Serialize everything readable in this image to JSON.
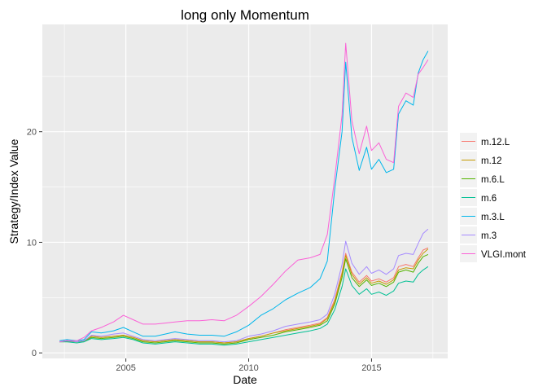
{
  "chart_data": {
    "type": "line",
    "title": "long only Momentum",
    "xlabel": "Date",
    "ylabel": "Strategy/Index Value",
    "xlim": [
      2001.6,
      2018.1
    ],
    "ylim": [
      -0.5,
      29.7
    ],
    "xticks": [
      2005,
      2010,
      2015
    ],
    "xtick_labels": [
      "2005",
      "2010",
      "2015"
    ],
    "yticks": [
      0,
      10,
      20
    ],
    "ytick_labels": [
      "0",
      "10",
      "20"
    ],
    "grid": true,
    "legend_position": "right",
    "x_unit": "year",
    "series": [
      {
        "name": "m.12.L",
        "color": "#F8766D",
        "points": [
          [
            2002.3,
            1.0
          ],
          [
            2002.6,
            1.1
          ],
          [
            2003.0,
            1.0
          ],
          [
            2003.3,
            1.1
          ],
          [
            2003.6,
            1.5
          ],
          [
            2004.0,
            1.4
          ],
          [
            2004.5,
            1.5
          ],
          [
            2004.9,
            1.6
          ],
          [
            2005.3,
            1.4
          ],
          [
            2005.7,
            1.1
          ],
          [
            2006.2,
            1.0
          ],
          [
            2006.6,
            1.1
          ],
          [
            2007.0,
            1.2
          ],
          [
            2007.5,
            1.1
          ],
          [
            2008.0,
            1.0
          ],
          [
            2008.5,
            1.0
          ],
          [
            2009.0,
            0.9
          ],
          [
            2009.5,
            1.0
          ],
          [
            2010.0,
            1.3
          ],
          [
            2010.5,
            1.5
          ],
          [
            2011.0,
            1.8
          ],
          [
            2011.5,
            2.1
          ],
          [
            2012.0,
            2.3
          ],
          [
            2012.5,
            2.5
          ],
          [
            2012.9,
            2.7
          ],
          [
            2013.2,
            3.2
          ],
          [
            2013.5,
            4.8
          ],
          [
            2013.8,
            7.3
          ],
          [
            2013.95,
            9.0
          ],
          [
            2014.2,
            7.3
          ],
          [
            2014.5,
            6.4
          ],
          [
            2014.8,
            7.0
          ],
          [
            2015.0,
            6.5
          ],
          [
            2015.3,
            6.7
          ],
          [
            2015.6,
            6.4
          ],
          [
            2015.9,
            6.8
          ],
          [
            2016.1,
            7.8
          ],
          [
            2016.4,
            8.0
          ],
          [
            2016.7,
            7.8
          ],
          [
            2016.9,
            8.6
          ],
          [
            2017.1,
            9.3
          ],
          [
            2017.3,
            9.5
          ]
        ]
      },
      {
        "name": "m.12",
        "color": "#C49A00",
        "points": [
          [
            2002.3,
            1.0
          ],
          [
            2002.6,
            1.1
          ],
          [
            2003.0,
            1.0
          ],
          [
            2003.3,
            1.1
          ],
          [
            2003.6,
            1.5
          ],
          [
            2004.0,
            1.4
          ],
          [
            2004.5,
            1.5
          ],
          [
            2004.9,
            1.6
          ],
          [
            2005.3,
            1.4
          ],
          [
            2005.7,
            1.1
          ],
          [
            2006.2,
            1.0
          ],
          [
            2006.6,
            1.1
          ],
          [
            2007.0,
            1.2
          ],
          [
            2007.5,
            1.1
          ],
          [
            2008.0,
            1.0
          ],
          [
            2008.5,
            1.0
          ],
          [
            2009.0,
            0.9
          ],
          [
            2009.5,
            1.0
          ],
          [
            2010.0,
            1.3
          ],
          [
            2010.5,
            1.5
          ],
          [
            2011.0,
            1.8
          ],
          [
            2011.5,
            2.0
          ],
          [
            2012.0,
            2.2
          ],
          [
            2012.5,
            2.4
          ],
          [
            2012.9,
            2.6
          ],
          [
            2013.2,
            3.1
          ],
          [
            2013.5,
            4.6
          ],
          [
            2013.8,
            7.1
          ],
          [
            2013.95,
            8.8
          ],
          [
            2014.2,
            7.1
          ],
          [
            2014.5,
            6.2
          ],
          [
            2014.8,
            6.8
          ],
          [
            2015.0,
            6.3
          ],
          [
            2015.3,
            6.5
          ],
          [
            2015.6,
            6.2
          ],
          [
            2015.9,
            6.6
          ],
          [
            2016.1,
            7.5
          ],
          [
            2016.4,
            7.7
          ],
          [
            2016.7,
            7.6
          ],
          [
            2016.9,
            8.4
          ],
          [
            2017.1,
            9.0
          ],
          [
            2017.3,
            9.4
          ]
        ]
      },
      {
        "name": "m.6.L",
        "color": "#53B400",
        "points": [
          [
            2002.3,
            1.0
          ],
          [
            2002.6,
            1.0
          ],
          [
            2003.0,
            1.0
          ],
          [
            2003.3,
            1.0
          ],
          [
            2003.6,
            1.4
          ],
          [
            2004.0,
            1.3
          ],
          [
            2004.5,
            1.4
          ],
          [
            2004.9,
            1.5
          ],
          [
            2005.3,
            1.3
          ],
          [
            2005.7,
            1.0
          ],
          [
            2006.2,
            0.9
          ],
          [
            2006.6,
            1.0
          ],
          [
            2007.0,
            1.1
          ],
          [
            2007.5,
            1.0
          ],
          [
            2008.0,
            0.9
          ],
          [
            2008.5,
            0.9
          ],
          [
            2009.0,
            0.8
          ],
          [
            2009.5,
            0.9
          ],
          [
            2010.0,
            1.2
          ],
          [
            2010.5,
            1.4
          ],
          [
            2011.0,
            1.6
          ],
          [
            2011.5,
            1.9
          ],
          [
            2012.0,
            2.1
          ],
          [
            2012.5,
            2.3
          ],
          [
            2012.9,
            2.5
          ],
          [
            2013.2,
            2.9
          ],
          [
            2013.5,
            4.4
          ],
          [
            2013.8,
            6.8
          ],
          [
            2013.95,
            8.5
          ],
          [
            2014.2,
            6.8
          ],
          [
            2014.5,
            6.0
          ],
          [
            2014.8,
            6.6
          ],
          [
            2015.0,
            6.1
          ],
          [
            2015.3,
            6.3
          ],
          [
            2015.6,
            6.0
          ],
          [
            2015.9,
            6.4
          ],
          [
            2016.1,
            7.3
          ],
          [
            2016.4,
            7.5
          ],
          [
            2016.7,
            7.3
          ],
          [
            2016.9,
            8.1
          ],
          [
            2017.1,
            8.7
          ],
          [
            2017.3,
            8.9
          ]
        ]
      },
      {
        "name": "m.6",
        "color": "#00C094",
        "points": [
          [
            2002.3,
            1.0
          ],
          [
            2002.6,
            1.0
          ],
          [
            2003.0,
            0.9
          ],
          [
            2003.3,
            1.0
          ],
          [
            2003.6,
            1.3
          ],
          [
            2004.0,
            1.2
          ],
          [
            2004.5,
            1.3
          ],
          [
            2004.9,
            1.4
          ],
          [
            2005.3,
            1.2
          ],
          [
            2005.7,
            0.9
          ],
          [
            2006.2,
            0.8
          ],
          [
            2006.6,
            0.9
          ],
          [
            2007.0,
            1.0
          ],
          [
            2007.5,
            0.9
          ],
          [
            2008.0,
            0.8
          ],
          [
            2008.5,
            0.8
          ],
          [
            2009.0,
            0.7
          ],
          [
            2009.5,
            0.8
          ],
          [
            2010.0,
            1.0
          ],
          [
            2010.5,
            1.2
          ],
          [
            2011.0,
            1.4
          ],
          [
            2011.5,
            1.6
          ],
          [
            2012.0,
            1.8
          ],
          [
            2012.5,
            2.0
          ],
          [
            2012.9,
            2.2
          ],
          [
            2013.2,
            2.6
          ],
          [
            2013.5,
            3.9
          ],
          [
            2013.8,
            6.0
          ],
          [
            2013.95,
            7.6
          ],
          [
            2014.2,
            6.1
          ],
          [
            2014.5,
            5.3
          ],
          [
            2014.8,
            5.8
          ],
          [
            2015.0,
            5.3
          ],
          [
            2015.3,
            5.5
          ],
          [
            2015.6,
            5.2
          ],
          [
            2015.9,
            5.6
          ],
          [
            2016.1,
            6.3
          ],
          [
            2016.4,
            6.5
          ],
          [
            2016.7,
            6.4
          ],
          [
            2016.9,
            7.1
          ],
          [
            2017.1,
            7.5
          ],
          [
            2017.3,
            7.8
          ]
        ]
      },
      {
        "name": "m.3.L",
        "color": "#00B6EB",
        "points": [
          [
            2002.3,
            1.1
          ],
          [
            2002.6,
            1.2
          ],
          [
            2003.0,
            1.1
          ],
          [
            2003.3,
            1.2
          ],
          [
            2003.6,
            1.9
          ],
          [
            2004.0,
            1.8
          ],
          [
            2004.5,
            2.0
          ],
          [
            2004.9,
            2.3
          ],
          [
            2005.3,
            1.9
          ],
          [
            2005.7,
            1.5
          ],
          [
            2006.2,
            1.5
          ],
          [
            2006.6,
            1.7
          ],
          [
            2007.0,
            1.9
          ],
          [
            2007.5,
            1.7
          ],
          [
            2008.0,
            1.6
          ],
          [
            2008.5,
            1.6
          ],
          [
            2009.0,
            1.5
          ],
          [
            2009.5,
            1.9
          ],
          [
            2010.0,
            2.5
          ],
          [
            2010.5,
            3.4
          ],
          [
            2011.0,
            4.0
          ],
          [
            2011.5,
            4.8
          ],
          [
            2012.0,
            5.4
          ],
          [
            2012.5,
            5.9
          ],
          [
            2012.9,
            6.7
          ],
          [
            2013.2,
            8.3
          ],
          [
            2013.5,
            14.8
          ],
          [
            2013.8,
            20.0
          ],
          [
            2013.95,
            26.3
          ],
          [
            2014.2,
            19.5
          ],
          [
            2014.5,
            16.5
          ],
          [
            2014.8,
            18.6
          ],
          [
            2015.0,
            16.6
          ],
          [
            2015.3,
            17.5
          ],
          [
            2015.6,
            16.3
          ],
          [
            2015.9,
            16.6
          ],
          [
            2016.1,
            21.6
          ],
          [
            2016.4,
            22.8
          ],
          [
            2016.7,
            22.4
          ],
          [
            2016.9,
            25.3
          ],
          [
            2017.1,
            26.5
          ],
          [
            2017.3,
            27.3
          ]
        ]
      },
      {
        "name": "m.3",
        "color": "#A58AFF",
        "points": [
          [
            2002.3,
            1.0
          ],
          [
            2002.6,
            1.1
          ],
          [
            2003.0,
            1.0
          ],
          [
            2003.3,
            1.1
          ],
          [
            2003.6,
            1.6
          ],
          [
            2004.0,
            1.5
          ],
          [
            2004.5,
            1.7
          ],
          [
            2004.9,
            1.8
          ],
          [
            2005.3,
            1.5
          ],
          [
            2005.7,
            1.2
          ],
          [
            2006.2,
            1.1
          ],
          [
            2006.6,
            1.2
          ],
          [
            2007.0,
            1.3
          ],
          [
            2007.5,
            1.2
          ],
          [
            2008.0,
            1.1
          ],
          [
            2008.5,
            1.1
          ],
          [
            2009.0,
            1.0
          ],
          [
            2009.5,
            1.1
          ],
          [
            2010.0,
            1.5
          ],
          [
            2010.5,
            1.7
          ],
          [
            2011.0,
            2.0
          ],
          [
            2011.5,
            2.4
          ],
          [
            2012.0,
            2.6
          ],
          [
            2012.5,
            2.8
          ],
          [
            2012.9,
            3.0
          ],
          [
            2013.2,
            3.5
          ],
          [
            2013.5,
            5.3
          ],
          [
            2013.8,
            8.0
          ],
          [
            2013.95,
            10.1
          ],
          [
            2014.2,
            8.1
          ],
          [
            2014.5,
            7.1
          ],
          [
            2014.8,
            7.8
          ],
          [
            2015.0,
            7.2
          ],
          [
            2015.3,
            7.5
          ],
          [
            2015.6,
            7.1
          ],
          [
            2015.9,
            7.6
          ],
          [
            2016.1,
            8.8
          ],
          [
            2016.4,
            9.0
          ],
          [
            2016.7,
            8.9
          ],
          [
            2016.9,
            9.9
          ],
          [
            2017.1,
            10.8
          ],
          [
            2017.3,
            11.2
          ]
        ]
      },
      {
        "name": "VLGI.mont",
        "color": "#FB61D7",
        "points": [
          [
            2002.3,
            1.0
          ],
          [
            2002.6,
            1.1
          ],
          [
            2003.0,
            1.1
          ],
          [
            2003.3,
            1.4
          ],
          [
            2003.6,
            2.0
          ],
          [
            2004.0,
            2.3
          ],
          [
            2004.5,
            2.8
          ],
          [
            2004.9,
            3.4
          ],
          [
            2005.3,
            3.0
          ],
          [
            2005.7,
            2.6
          ],
          [
            2006.2,
            2.6
          ],
          [
            2006.6,
            2.7
          ],
          [
            2007.0,
            2.8
          ],
          [
            2007.5,
            2.9
          ],
          [
            2008.0,
            2.9
          ],
          [
            2008.5,
            3.0
          ],
          [
            2009.0,
            2.9
          ],
          [
            2009.5,
            3.4
          ],
          [
            2010.0,
            4.2
          ],
          [
            2010.5,
            5.1
          ],
          [
            2011.0,
            6.2
          ],
          [
            2011.5,
            7.4
          ],
          [
            2012.0,
            8.4
          ],
          [
            2012.5,
            8.6
          ],
          [
            2012.9,
            8.9
          ],
          [
            2013.2,
            10.7
          ],
          [
            2013.5,
            15.8
          ],
          [
            2013.8,
            21.5
          ],
          [
            2013.95,
            28.0
          ],
          [
            2014.2,
            21.0
          ],
          [
            2014.5,
            18.0
          ],
          [
            2014.8,
            20.5
          ],
          [
            2015.0,
            18.3
          ],
          [
            2015.3,
            19.0
          ],
          [
            2015.6,
            17.5
          ],
          [
            2015.9,
            17.2
          ],
          [
            2016.1,
            22.3
          ],
          [
            2016.4,
            23.5
          ],
          [
            2016.7,
            23.1
          ],
          [
            2016.9,
            25.2
          ],
          [
            2017.1,
            25.8
          ],
          [
            2017.3,
            26.5
          ]
        ]
      }
    ]
  }
}
